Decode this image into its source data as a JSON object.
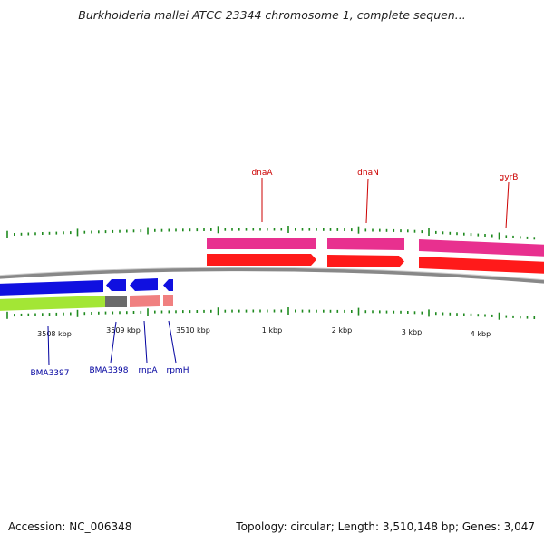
{
  "title": "Burkholderia mallei ATCC 23344 chromosome 1, complete sequen...",
  "footer": {
    "accession": "Accession: NC_006348",
    "summary": "Topology: circular; Length: 3,510,148 bp; Genes: 3,047"
  },
  "colors": {
    "tick": "#1f8a1f",
    "label_red": "#cc0000",
    "label_blue": "#00009f",
    "backbone": "#888888",
    "magenta": "#e8308f",
    "red": "#ff1a1a",
    "blue": "#1010e0",
    "green": "#a3e635",
    "gray": "#6b6b6b",
    "salmon": "#f08080"
  },
  "scale_labels": [
    "3508 kbp",
    "3509 kbp",
    "3510 kbp",
    "1 kbp",
    "2 kbp",
    "3 kbp",
    "4 kbp"
  ],
  "genes_top": [
    "dnaA",
    "dnaN",
    "gyrB"
  ],
  "genes_bottom": [
    "BMA3397",
    "BMA3398",
    "rnpA",
    "rpmH"
  ]
}
